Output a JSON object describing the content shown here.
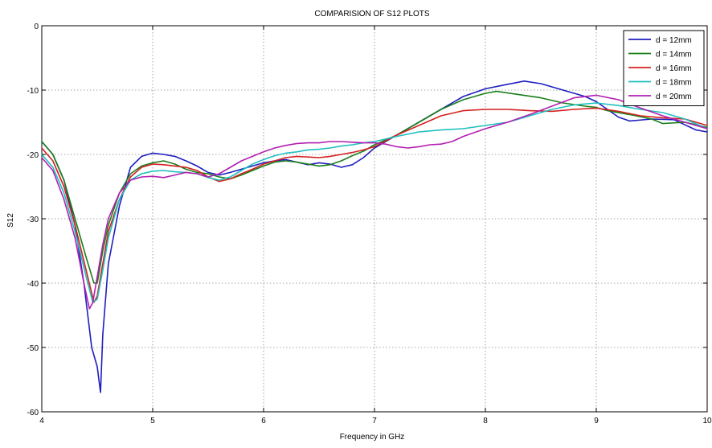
{
  "chart_data": {
    "type": "line",
    "title": "COMPARISION OF S12 PLOTS",
    "xlabel": "Frequency in GHz",
    "ylabel": "S12",
    "xlim": [
      4,
      10
    ],
    "ylim": [
      -60,
      0
    ],
    "xticks": [
      4,
      5,
      6,
      7,
      8,
      9,
      10
    ],
    "yticks": [
      0,
      -10,
      -20,
      -30,
      -40,
      -50,
      -60
    ],
    "grid": true,
    "legend_position": "top-right",
    "series": [
      {
        "name": "d = 12mm",
        "color": "#1f1fbf",
        "points": [
          [
            4.0,
            -18
          ],
          [
            4.1,
            -20
          ],
          [
            4.2,
            -24
          ],
          [
            4.3,
            -31
          ],
          [
            4.38,
            -40
          ],
          [
            4.45,
            -50
          ],
          [
            4.5,
            -53
          ],
          [
            4.53,
            -57
          ],
          [
            4.55,
            -48
          ],
          [
            4.6,
            -37
          ],
          [
            4.7,
            -28
          ],
          [
            4.8,
            -22
          ],
          [
            4.9,
            -20.3
          ],
          [
            5.0,
            -19.8
          ],
          [
            5.1,
            -20
          ],
          [
            5.2,
            -20.3
          ],
          [
            5.3,
            -21
          ],
          [
            5.4,
            -21.8
          ],
          [
            5.5,
            -22.8
          ],
          [
            5.6,
            -23.2
          ],
          [
            5.7,
            -22.8
          ],
          [
            5.8,
            -22.3
          ],
          [
            5.9,
            -21.8
          ],
          [
            6.0,
            -21.3
          ],
          [
            6.1,
            -21
          ],
          [
            6.2,
            -20.8
          ],
          [
            6.3,
            -21.2
          ],
          [
            6.4,
            -21.6
          ],
          [
            6.5,
            -21.3
          ],
          [
            6.6,
            -21.5
          ],
          [
            6.7,
            -22
          ],
          [
            6.8,
            -21.6
          ],
          [
            6.9,
            -20.5
          ],
          [
            7.0,
            -19
          ],
          [
            7.2,
            -17
          ],
          [
            7.4,
            -15
          ],
          [
            7.6,
            -13
          ],
          [
            7.8,
            -11
          ],
          [
            8.0,
            -9.8
          ],
          [
            8.2,
            -9.1
          ],
          [
            8.35,
            -8.6
          ],
          [
            8.5,
            -9.0
          ],
          [
            8.7,
            -10
          ],
          [
            8.9,
            -11
          ],
          [
            9.0,
            -11.8
          ],
          [
            9.1,
            -13
          ],
          [
            9.2,
            -14.2
          ],
          [
            9.3,
            -14.8
          ],
          [
            9.5,
            -14.5
          ],
          [
            9.7,
            -14.6
          ],
          [
            9.9,
            -16.2
          ],
          [
            10.0,
            -16.5
          ]
        ]
      },
      {
        "name": "d = 14mm",
        "color": "#1a7f1a",
        "points": [
          [
            4.0,
            -18
          ],
          [
            4.1,
            -20
          ],
          [
            4.2,
            -24
          ],
          [
            4.3,
            -30
          ],
          [
            4.4,
            -36
          ],
          [
            4.47,
            -40
          ],
          [
            4.5,
            -40
          ],
          [
            4.55,
            -35
          ],
          [
            4.6,
            -31
          ],
          [
            4.7,
            -26
          ],
          [
            4.8,
            -23
          ],
          [
            4.9,
            -21.8
          ],
          [
            5.0,
            -21.3
          ],
          [
            5.1,
            -21
          ],
          [
            5.2,
            -21.5
          ],
          [
            5.3,
            -22.3
          ],
          [
            5.4,
            -22.8
          ],
          [
            5.5,
            -23
          ],
          [
            5.6,
            -23.5
          ],
          [
            5.7,
            -23.8
          ],
          [
            5.8,
            -23.2
          ],
          [
            5.9,
            -22.5
          ],
          [
            6.0,
            -21.8
          ],
          [
            6.1,
            -21.2
          ],
          [
            6.2,
            -21
          ],
          [
            6.3,
            -21.2
          ],
          [
            6.4,
            -21.5
          ],
          [
            6.5,
            -21.8
          ],
          [
            6.6,
            -21.6
          ],
          [
            6.7,
            -21
          ],
          [
            6.8,
            -20.2
          ],
          [
            6.9,
            -19.5
          ],
          [
            7.0,
            -18.5
          ],
          [
            7.2,
            -17
          ],
          [
            7.4,
            -15
          ],
          [
            7.6,
            -13
          ],
          [
            7.8,
            -11.5
          ],
          [
            8.0,
            -10.5
          ],
          [
            8.1,
            -10.2
          ],
          [
            8.3,
            -10.7
          ],
          [
            8.5,
            -11.2
          ],
          [
            8.7,
            -12
          ],
          [
            8.9,
            -12.5
          ],
          [
            9.0,
            -12.7
          ],
          [
            9.1,
            -13.2
          ],
          [
            9.3,
            -13.8
          ],
          [
            9.5,
            -14.5
          ],
          [
            9.6,
            -15.2
          ],
          [
            9.8,
            -15
          ],
          [
            10.0,
            -15.8
          ]
        ]
      },
      {
        "name": "d = 16mm",
        "color": "#d41f1f",
        "points": [
          [
            4.0,
            -19
          ],
          [
            4.1,
            -21
          ],
          [
            4.2,
            -25
          ],
          [
            4.3,
            -31
          ],
          [
            4.4,
            -38
          ],
          [
            4.47,
            -43
          ],
          [
            4.5,
            -42
          ],
          [
            4.55,
            -37
          ],
          [
            4.6,
            -32
          ],
          [
            4.7,
            -27
          ],
          [
            4.8,
            -23.5
          ],
          [
            4.9,
            -22
          ],
          [
            5.0,
            -21.5
          ],
          [
            5.1,
            -21.6
          ],
          [
            5.2,
            -21.8
          ],
          [
            5.3,
            -22
          ],
          [
            5.4,
            -22.5
          ],
          [
            5.5,
            -23.5
          ],
          [
            5.6,
            -24.2
          ],
          [
            5.7,
            -23.8
          ],
          [
            5.8,
            -23
          ],
          [
            5.9,
            -22.3
          ],
          [
            6.0,
            -21.5
          ],
          [
            6.1,
            -21
          ],
          [
            6.2,
            -20.5
          ],
          [
            6.3,
            -20.3
          ],
          [
            6.4,
            -20.4
          ],
          [
            6.5,
            -20.5
          ],
          [
            6.6,
            -20.3
          ],
          [
            6.7,
            -20
          ],
          [
            6.8,
            -19.7
          ],
          [
            6.9,
            -19.3
          ],
          [
            7.0,
            -18.8
          ],
          [
            7.2,
            -17
          ],
          [
            7.4,
            -15.5
          ],
          [
            7.6,
            -14
          ],
          [
            7.8,
            -13.2
          ],
          [
            8.0,
            -13
          ],
          [
            8.2,
            -13
          ],
          [
            8.4,
            -13.2
          ],
          [
            8.6,
            -13.3
          ],
          [
            8.8,
            -13
          ],
          [
            9.0,
            -12.8
          ],
          [
            9.2,
            -13.3
          ],
          [
            9.4,
            -14
          ],
          [
            9.6,
            -14.3
          ],
          [
            9.8,
            -14.5
          ],
          [
            10.0,
            -15.5
          ]
        ]
      },
      {
        "name": "d = 18mm",
        "color": "#1fbfbf",
        "points": [
          [
            4.0,
            -20
          ],
          [
            4.1,
            -22
          ],
          [
            4.2,
            -26
          ],
          [
            4.3,
            -32
          ],
          [
            4.4,
            -39
          ],
          [
            4.46,
            -43
          ],
          [
            4.5,
            -42.5
          ],
          [
            4.55,
            -38
          ],
          [
            4.6,
            -33
          ],
          [
            4.7,
            -27
          ],
          [
            4.8,
            -24
          ],
          [
            4.9,
            -23
          ],
          [
            5.0,
            -22.6
          ],
          [
            5.1,
            -22.5
          ],
          [
            5.2,
            -22.7
          ],
          [
            5.3,
            -22.8
          ],
          [
            5.4,
            -23
          ],
          [
            5.5,
            -23.6
          ],
          [
            5.6,
            -24
          ],
          [
            5.7,
            -23.5
          ],
          [
            5.8,
            -22.5
          ],
          [
            5.9,
            -21.5
          ],
          [
            6.0,
            -20.8
          ],
          [
            6.1,
            -20.2
          ],
          [
            6.2,
            -19.8
          ],
          [
            6.3,
            -19.6
          ],
          [
            6.4,
            -19.3
          ],
          [
            6.5,
            -19.2
          ],
          [
            6.6,
            -19
          ],
          [
            6.7,
            -18.7
          ],
          [
            6.8,
            -18.5
          ],
          [
            6.9,
            -18.2
          ],
          [
            7.0,
            -18
          ],
          [
            7.2,
            -17.2
          ],
          [
            7.4,
            -16.5
          ],
          [
            7.6,
            -16.2
          ],
          [
            7.8,
            -16
          ],
          [
            8.0,
            -15.5
          ],
          [
            8.2,
            -15
          ],
          [
            8.4,
            -14
          ],
          [
            8.6,
            -13
          ],
          [
            8.8,
            -12.3
          ],
          [
            9.0,
            -12
          ],
          [
            9.2,
            -12.4
          ],
          [
            9.4,
            -13
          ],
          [
            9.6,
            -13.5
          ],
          [
            9.8,
            -14.5
          ],
          [
            10.0,
            -16
          ]
        ]
      },
      {
        "name": "d = 20mm",
        "color": "#b21fb2",
        "points": [
          [
            4.0,
            -20.5
          ],
          [
            4.1,
            -22.5
          ],
          [
            4.2,
            -27
          ],
          [
            4.3,
            -33
          ],
          [
            4.38,
            -40
          ],
          [
            4.43,
            -44
          ],
          [
            4.46,
            -43
          ],
          [
            4.5,
            -39
          ],
          [
            4.55,
            -34
          ],
          [
            4.6,
            -30
          ],
          [
            4.7,
            -26
          ],
          [
            4.8,
            -24
          ],
          [
            4.9,
            -23.5
          ],
          [
            5.0,
            -23.4
          ],
          [
            5.1,
            -23.6
          ],
          [
            5.2,
            -23.2
          ],
          [
            5.3,
            -22.8
          ],
          [
            5.4,
            -23
          ],
          [
            5.5,
            -23.5
          ],
          [
            5.6,
            -23
          ],
          [
            5.7,
            -22
          ],
          [
            5.8,
            -21
          ],
          [
            5.9,
            -20.3
          ],
          [
            6.0,
            -19.6
          ],
          [
            6.1,
            -19
          ],
          [
            6.2,
            -18.6
          ],
          [
            6.3,
            -18.3
          ],
          [
            6.4,
            -18.2
          ],
          [
            6.5,
            -18.2
          ],
          [
            6.6,
            -18
          ],
          [
            6.7,
            -18
          ],
          [
            6.8,
            -18.1
          ],
          [
            6.9,
            -18.2
          ],
          [
            7.0,
            -18.2
          ],
          [
            7.1,
            -18.4
          ],
          [
            7.2,
            -18.8
          ],
          [
            7.3,
            -19
          ],
          [
            7.4,
            -18.8
          ],
          [
            7.5,
            -18.5
          ],
          [
            7.6,
            -18.4
          ],
          [
            7.7,
            -18
          ],
          [
            7.8,
            -17.2
          ],
          [
            8.0,
            -16
          ],
          [
            8.2,
            -15
          ],
          [
            8.4,
            -13.8
          ],
          [
            8.6,
            -12.5
          ],
          [
            8.8,
            -11.2
          ],
          [
            9.0,
            -10.8
          ],
          [
            9.2,
            -11.5
          ],
          [
            9.4,
            -12.8
          ],
          [
            9.6,
            -14
          ],
          [
            9.8,
            -15
          ],
          [
            10.0,
            -16
          ]
        ]
      }
    ]
  }
}
